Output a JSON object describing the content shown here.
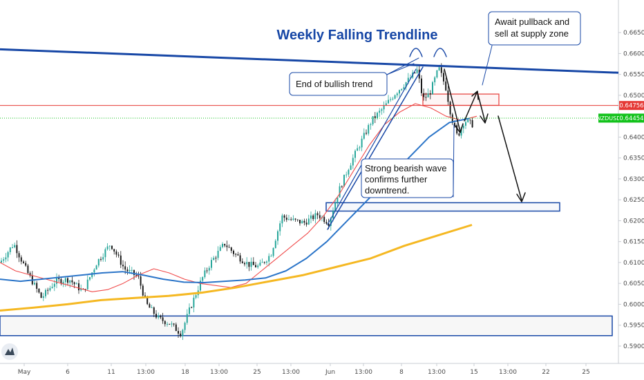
{
  "chart_data": {
    "type": "line",
    "symbol": "NZDUSD",
    "title": "Weekly Falling Trendline",
    "y_ticks": [
      "0.66500",
      "0.66000",
      "0.65500",
      "0.65000",
      "0.64500",
      "0.64000",
      "0.63500",
      "0.63000",
      "0.62500",
      "0.62000",
      "0.61500",
      "0.61000",
      "0.60500",
      "0.60000",
      "0.59500",
      "0.59000"
    ],
    "x_ticks": [
      "May",
      "6",
      "11",
      "13:00",
      "18",
      "13:00",
      "25",
      "13:00",
      "Jun",
      "13:00",
      "8",
      "13:00",
      "15",
      "13:00",
      "22",
      "25"
    ],
    "ylim": [
      0.5885,
      0.6685
    ],
    "price_tags": {
      "supply_level": "0.64756",
      "current_label": "NZDUSD",
      "current_price": "0.64454"
    },
    "annotations": [
      "Await pullback and sell at supply zone",
      "End of bullish trend",
      "Strong bearish wave confirms further downtrend."
    ],
    "annotation_lines": {
      "await": [
        "Await pullback and",
        "sell at supply zone"
      ],
      "end": [
        "End of bullish trend"
      ],
      "strong": [
        "Strong bearish wave",
        "confirms further",
        "downtrend."
      ]
    },
    "zones": {
      "supply": [
        0.6476,
        0.6503
      ],
      "target": [
        0.6223,
        0.6243
      ],
      "lower_demand": [
        0.5925,
        0.5972
      ]
    },
    "trendline_prices": [
      0.661,
      0.6554
    ],
    "colors": {
      "up_candle": "#26a69a",
      "down_candle": "#1b1b1b",
      "ema_fast": "#f04a4a",
      "ema_mid": "#2a74c8",
      "ema_slow": "#f5b822",
      "trendline": "#1747a6",
      "supply": "#e53935",
      "current": "#12c21b"
    },
    "series": [
      {
        "values": [
          0.61,
          0.608,
          0.607,
          0.606,
          0.605,
          0.604,
          0.603,
          0.6035,
          0.605,
          0.607,
          0.6085,
          0.6075,
          0.606,
          0.605,
          0.6045,
          0.604,
          0.605,
          0.608,
          0.611,
          0.614,
          0.617,
          0.621,
          0.626,
          0.632,
          0.638,
          0.643,
          0.646,
          0.648,
          0.647,
          0.645,
          0.644,
          0.645
        ]
      },
      {
        "values": [
          0.606,
          0.6055,
          0.606,
          0.6065,
          0.607,
          0.6075,
          0.6078,
          0.607,
          0.606,
          0.6053,
          0.6052,
          0.6055,
          0.6058,
          0.6063,
          0.608,
          0.611,
          0.615,
          0.62,
          0.625,
          0.63,
          0.635,
          0.64,
          0.6435,
          0.6445
        ]
      },
      {
        "values": [
          0.5985,
          0.5992,
          0.6,
          0.601,
          0.6015,
          0.602,
          0.6028,
          0.604,
          0.6055,
          0.607,
          0.609,
          0.611,
          0.614,
          0.6165,
          0.619
        ]
      }
    ]
  }
}
